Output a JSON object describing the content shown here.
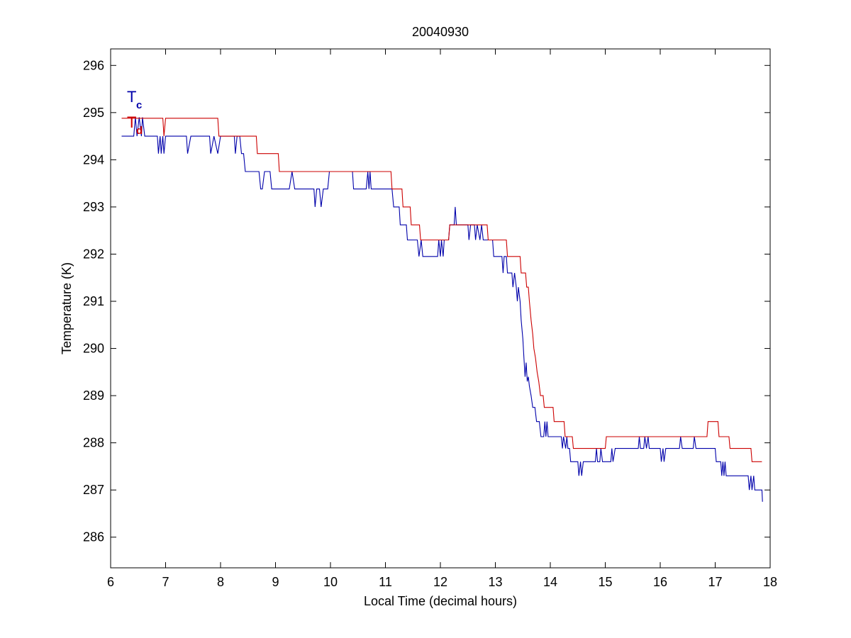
{
  "chart_data": {
    "type": "line",
    "title": "20040930",
    "xlabel": "Local Time (decimal hours)",
    "ylabel": "Temperature (K)",
    "xlim": [
      6,
      18
    ],
    "ylim": [
      285.35,
      296.35
    ],
    "xticks": [
      6,
      7,
      8,
      9,
      10,
      11,
      12,
      13,
      14,
      15,
      16,
      17,
      18
    ],
    "yticks": [
      286,
      287,
      288,
      289,
      290,
      291,
      292,
      293,
      294,
      295,
      296
    ],
    "grid": false,
    "legend_placement": "top-left",
    "series": [
      {
        "name": "Tc",
        "legend_main": "T",
        "legend_sub": "c",
        "color": "#0000aa",
        "points": [
          [
            6.2,
            294.5
          ],
          [
            6.42,
            294.5
          ],
          [
            6.45,
            294.9
          ],
          [
            6.48,
            294.5
          ],
          [
            6.52,
            294.9
          ],
          [
            6.56,
            294.5
          ],
          [
            6.58,
            294.9
          ],
          [
            6.62,
            294.5
          ],
          [
            6.85,
            294.5
          ],
          [
            6.87,
            294.13
          ],
          [
            6.9,
            294.5
          ],
          [
            6.92,
            294.13
          ],
          [
            6.95,
            294.5
          ],
          [
            6.97,
            294.13
          ],
          [
            7.0,
            294.5
          ],
          [
            7.38,
            294.5
          ],
          [
            7.4,
            294.13
          ],
          [
            7.46,
            294.5
          ],
          [
            7.8,
            294.5
          ],
          [
            7.82,
            294.13
          ],
          [
            7.88,
            294.5
          ],
          [
            7.95,
            294.13
          ],
          [
            8.0,
            294.5
          ],
          [
            8.25,
            294.5
          ],
          [
            8.27,
            294.13
          ],
          [
            8.3,
            294.5
          ],
          [
            8.35,
            294.5
          ],
          [
            8.38,
            294.13
          ],
          [
            8.42,
            294.13
          ],
          [
            8.45,
            293.75
          ],
          [
            8.7,
            293.75
          ],
          [
            8.73,
            293.38
          ],
          [
            8.76,
            293.38
          ],
          [
            8.8,
            293.75
          ],
          [
            8.9,
            293.75
          ],
          [
            8.93,
            293.38
          ],
          [
            9.25,
            293.38
          ],
          [
            9.3,
            293.75
          ],
          [
            9.35,
            293.38
          ],
          [
            9.7,
            293.38
          ],
          [
            9.72,
            293.0
          ],
          [
            9.75,
            293.38
          ],
          [
            9.8,
            293.38
          ],
          [
            9.83,
            293.0
          ],
          [
            9.87,
            293.38
          ],
          [
            9.95,
            293.38
          ],
          [
            9.98,
            293.75
          ],
          [
            10.4,
            293.75
          ],
          [
            10.42,
            293.38
          ],
          [
            10.65,
            293.38
          ],
          [
            10.68,
            293.75
          ],
          [
            10.7,
            293.38
          ],
          [
            10.72,
            293.75
          ],
          [
            10.74,
            293.38
          ],
          [
            11.12,
            293.38
          ],
          [
            11.15,
            293.0
          ],
          [
            11.25,
            293.0
          ],
          [
            11.27,
            292.62
          ],
          [
            11.38,
            292.62
          ],
          [
            11.4,
            292.3
          ],
          [
            11.58,
            292.3
          ],
          [
            11.61,
            291.95
          ],
          [
            11.65,
            292.3
          ],
          [
            11.68,
            291.95
          ],
          [
            11.95,
            291.95
          ],
          [
            11.97,
            292.3
          ],
          [
            12.0,
            291.95
          ],
          [
            12.02,
            292.3
          ],
          [
            12.05,
            291.95
          ],
          [
            12.07,
            292.3
          ],
          [
            12.15,
            292.3
          ],
          [
            12.17,
            292.62
          ],
          [
            12.25,
            292.62
          ],
          [
            12.27,
            293.0
          ],
          [
            12.29,
            292.62
          ],
          [
            12.5,
            292.62
          ],
          [
            12.52,
            292.3
          ],
          [
            12.55,
            292.62
          ],
          [
            12.62,
            292.62
          ],
          [
            12.64,
            292.3
          ],
          [
            12.67,
            292.62
          ],
          [
            12.72,
            292.3
          ],
          [
            12.75,
            292.62
          ],
          [
            12.78,
            292.3
          ],
          [
            12.95,
            292.3
          ],
          [
            12.97,
            291.95
          ],
          [
            13.12,
            291.95
          ],
          [
            13.14,
            291.6
          ],
          [
            13.16,
            291.95
          ],
          [
            13.2,
            291.95
          ],
          [
            13.22,
            291.6
          ],
          [
            13.3,
            291.6
          ],
          [
            13.32,
            291.3
          ],
          [
            13.35,
            291.6
          ],
          [
            13.38,
            291.3
          ],
          [
            13.4,
            291.0
          ],
          [
            13.42,
            291.3
          ],
          [
            13.45,
            291.0
          ],
          [
            13.47,
            290.6
          ],
          [
            13.5,
            290.2
          ],
          [
            13.52,
            289.8
          ],
          [
            13.54,
            289.4
          ],
          [
            13.56,
            289.7
          ],
          [
            13.58,
            289.3
          ],
          [
            13.6,
            289.4
          ],
          [
            13.62,
            289.2
          ],
          [
            13.65,
            289.0
          ],
          [
            13.68,
            288.75
          ],
          [
            13.72,
            288.75
          ],
          [
            13.75,
            288.45
          ],
          [
            13.8,
            288.45
          ],
          [
            13.83,
            288.13
          ],
          [
            13.88,
            288.13
          ],
          [
            13.9,
            288.45
          ],
          [
            13.92,
            288.13
          ],
          [
            13.94,
            288.45
          ],
          [
            13.96,
            288.13
          ],
          [
            14.2,
            288.13
          ],
          [
            14.22,
            287.88
          ],
          [
            14.24,
            288.13
          ],
          [
            14.28,
            287.88
          ],
          [
            14.3,
            288.13
          ],
          [
            14.32,
            287.88
          ],
          [
            14.35,
            287.88
          ],
          [
            14.37,
            287.6
          ],
          [
            14.5,
            287.6
          ],
          [
            14.52,
            287.3
          ],
          [
            14.55,
            287.6
          ],
          [
            14.57,
            287.3
          ],
          [
            14.6,
            287.6
          ],
          [
            14.82,
            287.6
          ],
          [
            14.84,
            287.88
          ],
          [
            14.86,
            287.6
          ],
          [
            14.9,
            287.6
          ],
          [
            14.92,
            287.88
          ],
          [
            14.95,
            287.6
          ],
          [
            15.1,
            287.6
          ],
          [
            15.12,
            287.88
          ],
          [
            15.14,
            287.6
          ],
          [
            15.18,
            287.88
          ],
          [
            15.6,
            287.88
          ],
          [
            15.62,
            288.13
          ],
          [
            15.64,
            287.88
          ],
          [
            15.7,
            287.88
          ],
          [
            15.72,
            288.13
          ],
          [
            15.75,
            287.88
          ],
          [
            15.78,
            288.13
          ],
          [
            15.8,
            287.88
          ],
          [
            16.0,
            287.88
          ],
          [
            16.02,
            287.6
          ],
          [
            16.05,
            287.88
          ],
          [
            16.07,
            287.6
          ],
          [
            16.1,
            287.88
          ],
          [
            16.35,
            287.88
          ],
          [
            16.37,
            288.13
          ],
          [
            16.4,
            287.88
          ],
          [
            16.6,
            287.88
          ],
          [
            16.62,
            288.13
          ],
          [
            16.65,
            287.88
          ],
          [
            17.0,
            287.88
          ],
          [
            17.02,
            287.6
          ],
          [
            17.1,
            287.6
          ],
          [
            17.12,
            287.3
          ],
          [
            17.14,
            287.6
          ],
          [
            17.16,
            287.3
          ],
          [
            17.18,
            287.6
          ],
          [
            17.2,
            287.3
          ],
          [
            17.6,
            287.3
          ],
          [
            17.62,
            287.0
          ],
          [
            17.65,
            287.3
          ],
          [
            17.67,
            287.0
          ],
          [
            17.7,
            287.3
          ],
          [
            17.72,
            287.0
          ],
          [
            17.8,
            287.0
          ],
          [
            17.85,
            287.0
          ],
          [
            17.86,
            286.75
          ]
        ]
      },
      {
        "name": "Td",
        "legend_main": "T",
        "legend_sub": "d",
        "color": "#cc0000",
        "points": [
          [
            6.2,
            294.88
          ],
          [
            6.95,
            294.88
          ],
          [
            6.97,
            294.5
          ],
          [
            7.0,
            294.88
          ],
          [
            7.95,
            294.88
          ],
          [
            7.97,
            294.5
          ],
          [
            8.65,
            294.5
          ],
          [
            8.67,
            294.13
          ],
          [
            9.05,
            294.13
          ],
          [
            9.07,
            293.75
          ],
          [
            11.1,
            293.75
          ],
          [
            11.12,
            293.38
          ],
          [
            11.3,
            293.38
          ],
          [
            11.32,
            293.0
          ],
          [
            11.45,
            293.0
          ],
          [
            11.47,
            292.62
          ],
          [
            11.62,
            292.62
          ],
          [
            11.64,
            292.3
          ],
          [
            12.15,
            292.3
          ],
          [
            12.17,
            292.62
          ],
          [
            12.85,
            292.62
          ],
          [
            12.87,
            292.3
          ],
          [
            13.2,
            292.3
          ],
          [
            13.22,
            291.95
          ],
          [
            13.45,
            291.95
          ],
          [
            13.47,
            291.6
          ],
          [
            13.55,
            291.6
          ],
          [
            13.57,
            291.3
          ],
          [
            13.6,
            291.3
          ],
          [
            13.62,
            291.0
          ],
          [
            13.65,
            290.6
          ],
          [
            13.68,
            290.3
          ],
          [
            13.7,
            290.0
          ],
          [
            13.73,
            289.8
          ],
          [
            13.76,
            289.5
          ],
          [
            13.79,
            289.3
          ],
          [
            13.82,
            289.0
          ],
          [
            13.87,
            289.0
          ],
          [
            13.89,
            288.75
          ],
          [
            14.05,
            288.75
          ],
          [
            14.07,
            288.45
          ],
          [
            14.25,
            288.45
          ],
          [
            14.27,
            288.13
          ],
          [
            14.4,
            288.13
          ],
          [
            14.42,
            287.88
          ],
          [
            15.0,
            287.88
          ],
          [
            15.02,
            288.13
          ],
          [
            16.85,
            288.13
          ],
          [
            16.87,
            288.45
          ],
          [
            17.05,
            288.45
          ],
          [
            17.07,
            288.13
          ],
          [
            17.25,
            288.13
          ],
          [
            17.27,
            287.88
          ],
          [
            17.65,
            287.88
          ],
          [
            17.67,
            287.6
          ],
          [
            17.85,
            287.6
          ]
        ]
      }
    ]
  }
}
